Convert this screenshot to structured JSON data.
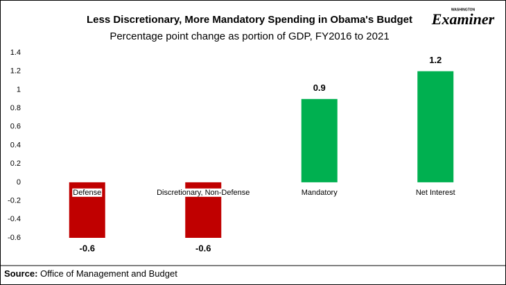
{
  "chart_data": {
    "type": "bar",
    "title": "Less Discretionary, More Mandatory Spending in Obama's Budget",
    "subtitle": "Percentage point change as portion of GDP, FY2016 to 2021",
    "categories": [
      "Defense",
      "Discretionary, Non-Defense",
      "Mandatory",
      "Net Interest"
    ],
    "values": [
      -0.6,
      -0.6,
      0.9,
      1.2
    ],
    "colors": [
      "#c00000",
      "#c00000",
      "#00b050",
      "#00b050"
    ],
    "ylim": [
      -0.6,
      1.4
    ],
    "yticks": [
      -0.6,
      -0.4,
      -0.2,
      0,
      0.2,
      0.4,
      0.6,
      0.8,
      1,
      1.2,
      1.4
    ],
    "grid": false,
    "source_label": "Source:",
    "source": "Office of Management and Budget",
    "logo": {
      "top": "WASHINGTON",
      "name": "Examiner"
    }
  }
}
